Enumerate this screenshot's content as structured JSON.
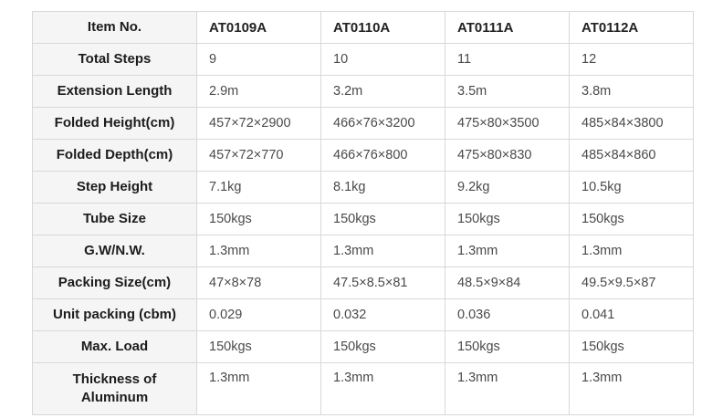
{
  "table": {
    "header": {
      "label": "Item No.",
      "values": [
        "AT0109A",
        "AT0110A",
        "AT0111A",
        "AT0112A"
      ]
    },
    "rows": [
      {
        "label": "Total Steps",
        "values": [
          "9",
          "10",
          "11",
          "12"
        ]
      },
      {
        "label": "Extension Length",
        "values": [
          "2.9m",
          "3.2m",
          "3.5m",
          "3.8m"
        ]
      },
      {
        "label": "Folded Height(cm)",
        "values": [
          "457×72×2900",
          "466×76×3200",
          "475×80×3500",
          "485×84×3800"
        ]
      },
      {
        "label": "Folded Depth(cm)",
        "values": [
          "457×72×770",
          "466×76×800",
          "475×80×830",
          "485×84×860"
        ]
      },
      {
        "label": "Step Height",
        "values": [
          "7.1kg",
          "8.1kg",
          "9.2kg",
          "10.5kg"
        ]
      },
      {
        "label": "Tube Size",
        "values": [
          "150kgs",
          "150kgs",
          "150kgs",
          "150kgs"
        ]
      },
      {
        "label": "G.W/N.W.",
        "values": [
          "1.3mm",
          "1.3mm",
          "1.3mm",
          "1.3mm"
        ]
      },
      {
        "label": "Packing Size(cm)",
        "values": [
          "47×8×78",
          "47.5×8.5×81",
          "48.5×9×84",
          "49.5×9.5×87"
        ]
      },
      {
        "label": "Unit packing (cbm)",
        "values": [
          "0.029",
          "0.032",
          "0.036",
          "0.041"
        ]
      },
      {
        "label": "Max. Load",
        "values": [
          "150kgs",
          "150kgs",
          "150kgs",
          "150kgs"
        ]
      },
      {
        "label": "Thickness of\nAluminum",
        "values": [
          "1.3mm",
          "1.3mm",
          "1.3mm",
          "1.3mm"
        ]
      }
    ],
    "colors": {
      "label_column_background": "#f5f5f6",
      "border": "#d8d8d8",
      "label_text": "#1c1c1c",
      "value_text": "#4a4a4a"
    }
  }
}
